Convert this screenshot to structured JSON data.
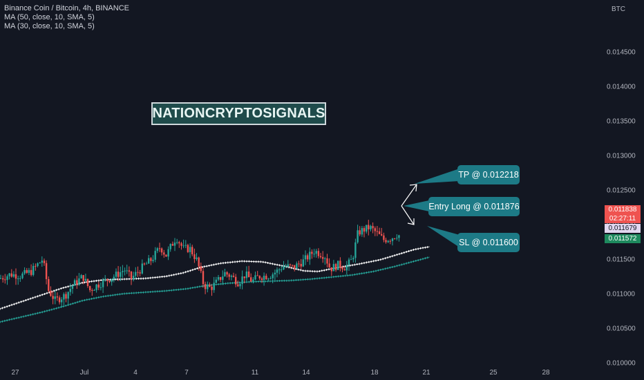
{
  "legend": {
    "symbol_line": "Binance Coin / Bitcoin, 4h, BINANCE",
    "ma1": "MA (50, close, 10, SMA, 5)",
    "ma2": "MA (30, close, 10, SMA, 5)"
  },
  "watermark": "NATIONCRYPTOSIGNALS",
  "annotations": {
    "tp": "TP @ 0.012218",
    "entry": "Entry Long @ 0.011876",
    "sl": "SL @ 0.011600"
  },
  "price_tags": {
    "last_price": "0.011838",
    "countdown": "02:27:11",
    "ma_white": "0.011679",
    "ma_green": "0.011572"
  },
  "colors": {
    "background": "#131722",
    "up": "#26a69a",
    "down": "#ef5350",
    "ma_white": "#ffffff",
    "ma_green": "#26a69a",
    "callout": "#1d7a86"
  },
  "chart_data": {
    "type": "candlestick",
    "title": "Binance Coin / Bitcoin, 4h, BINANCE",
    "y_axis_unit": "BTC",
    "ylim": [
      0.0098,
      0.0148
    ],
    "y_ticks": [
      "0.014500",
      "0.014000",
      "0.013500",
      "0.013000",
      "0.012500",
      "0.012000",
      "0.011500",
      "0.011000",
      "0.010500",
      "0.010000"
    ],
    "x_tick_labels": [
      "27",
      "Jul",
      "4",
      "7",
      "11",
      "14",
      "18",
      "21",
      "25",
      "28"
    ],
    "trade_levels": {
      "take_profit": 0.012218,
      "entry_long": 0.011876,
      "stop_loss": 0.0116
    },
    "series": [
      {
        "name": "MA (50, close, 10, SMA, 5)",
        "points": [
          [
            0,
            0.01078
          ],
          [
            30,
            0.01088
          ],
          [
            60,
            0.01098
          ],
          [
            90,
            0.01108
          ],
          [
            120,
            0.01116
          ],
          [
            150,
            0.0112
          ],
          [
            180,
            0.01121
          ],
          [
            210,
            0.01122
          ],
          [
            240,
            0.01125
          ],
          [
            265,
            0.0113
          ],
          [
            290,
            0.01138
          ],
          [
            320,
            0.01144
          ],
          [
            350,
            0.01147
          ],
          [
            380,
            0.01146
          ],
          [
            410,
            0.0114
          ],
          [
            440,
            0.01133
          ],
          [
            460,
            0.01132
          ],
          [
            490,
            0.01138
          ],
          [
            520,
            0.01143
          ],
          [
            550,
            0.01149
          ],
          [
            580,
            0.01158
          ],
          [
            600,
            0.01164
          ],
          [
            622,
            0.01168
          ]
        ]
      },
      {
        "name": "MA (30, close, 10, SMA, 5)",
        "points": [
          [
            0,
            0.01059
          ],
          [
            30,
            0.01066
          ],
          [
            60,
            0.01073
          ],
          [
            90,
            0.01081
          ],
          [
            120,
            0.0109
          ],
          [
            150,
            0.01096
          ],
          [
            180,
            0.011
          ],
          [
            210,
            0.01102
          ],
          [
            240,
            0.01104
          ],
          [
            270,
            0.01107
          ],
          [
            300,
            0.01112
          ],
          [
            330,
            0.01115
          ],
          [
            360,
            0.01117
          ],
          [
            390,
            0.01118
          ],
          [
            420,
            0.01119
          ],
          [
            450,
            0.01121
          ],
          [
            480,
            0.01124
          ],
          [
            510,
            0.01127
          ],
          [
            540,
            0.01132
          ],
          [
            570,
            0.01139
          ],
          [
            600,
            0.01147
          ],
          [
            622,
            0.01153
          ]
        ]
      }
    ],
    "candle_segments": [
      [
        0,
        0.01122
      ],
      [
        15,
        0.01128
      ],
      [
        30,
        0.01126
      ],
      [
        45,
        0.01132
      ],
      [
        62,
        0.0115
      ],
      [
        70,
        0.01105
      ],
      [
        80,
        0.0109
      ],
      [
        95,
        0.01098
      ],
      [
        105,
        0.01112
      ],
      [
        120,
        0.01125
      ],
      [
        130,
        0.01105
      ],
      [
        140,
        0.01112
      ],
      [
        155,
        0.0112
      ],
      [
        170,
        0.01128
      ],
      [
        180,
        0.01135
      ],
      [
        190,
        0.01122
      ],
      [
        205,
        0.01137
      ],
      [
        220,
        0.0115
      ],
      [
        232,
        0.01168
      ],
      [
        240,
        0.01155
      ],
      [
        255,
        0.01182
      ],
      [
        265,
        0.01165
      ],
      [
        275,
        0.01165
      ],
      [
        285,
        0.01148
      ],
      [
        295,
        0.01112
      ],
      [
        305,
        0.01108
      ],
      [
        315,
        0.01118
      ],
      [
        325,
        0.0113
      ],
      [
        335,
        0.01125
      ],
      [
        345,
        0.01116
      ],
      [
        355,
        0.01128
      ],
      [
        365,
        0.01118
      ],
      [
        375,
        0.01125
      ],
      [
        390,
        0.01126
      ],
      [
        400,
        0.01132
      ],
      [
        410,
        0.0114
      ],
      [
        425,
        0.01138
      ],
      [
        440,
        0.01148
      ],
      [
        455,
        0.01162
      ],
      [
        470,
        0.01155
      ],
      [
        478,
        0.01136
      ],
      [
        490,
        0.01142
      ],
      [
        500,
        0.01138
      ],
      [
        510,
        0.0115
      ],
      [
        518,
        0.01188
      ],
      [
        525,
        0.01192
      ],
      [
        535,
        0.01196
      ],
      [
        545,
        0.01188
      ],
      [
        555,
        0.01178
      ],
      [
        565,
        0.0118
      ],
      [
        575,
        0.01186
      ],
      [
        578,
        0.01184
      ]
    ],
    "last_price": 0.011838
  }
}
